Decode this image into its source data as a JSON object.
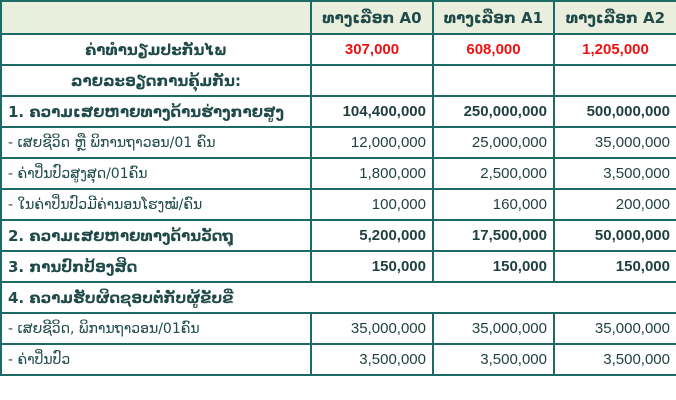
{
  "header": {
    "options": [
      "ທາງເລືອກ A0",
      "ທາງເລືອກ A1",
      "ທາງເລືອກ A2"
    ]
  },
  "premium": {
    "label": "ຄ່າທຳນຽມປະກັນໄພ",
    "values": [
      "307,000",
      "608,000",
      "1,205,000"
    ],
    "color": "#ee1111"
  },
  "coverage_label": "ລາຍລະອຽດການຄຸ້ມກັນ:",
  "rows": [
    {
      "label": "1.  ຄວາມເສຍຫາຍທາງດ້ານຮ່າງກາຍສູງ",
      "bold": true,
      "values": [
        "104,400,000",
        "250,000,000",
        "500,000,000"
      ]
    },
    {
      "label": "-  ເສຍຊີວິດ  ຫຼື  ພິການຖາວອນ/01  ຄົນ",
      "bold": false,
      "values": [
        "12,000,000",
        "25,000,000",
        "35,000,000"
      ]
    },
    {
      "label": "-  ຄ່າປິ່ນປົວສູງສຸດ/01ຄົນ",
      "bold": false,
      "values": [
        "1,800,000",
        "2,500,000",
        "3,500,000"
      ]
    },
    {
      "label": "-  ໃນຄ່າປິ່ນປົວມີຄ່ານອນໂຮງໝໍ/ຄົນ",
      "bold": false,
      "values": [
        "100,000",
        "160,000",
        "200,000"
      ]
    },
    {
      "label": "2.  ຄວາມເສຍຫາຍທາງດ້ານວັດຖຸ",
      "bold": true,
      "values": [
        "5,200,000",
        "17,500,000",
        "50,000,000"
      ]
    },
    {
      "label": "3.  ການປົກປ້ອງສິດ",
      "bold": true,
      "values": [
        "150,000",
        "150,000",
        "150,000"
      ]
    }
  ],
  "section4": {
    "label": "4.  ຄວາມຮັບຜິດຊອບຕໍ່ກັບຜູ້ຂັບຂີ່"
  },
  "rows4": [
    {
      "label": "-  ເສຍຊີວິດ,  ພິການຖາວອນ/01ຄົນ",
      "values": [
        "35,000,000",
        "35,000,000",
        "35,000,000"
      ]
    },
    {
      "label": "-  ຄ່າປິ່ນປົວ",
      "values": [
        "3,500,000",
        "3,500,000",
        "3,500,000"
      ]
    }
  ]
}
